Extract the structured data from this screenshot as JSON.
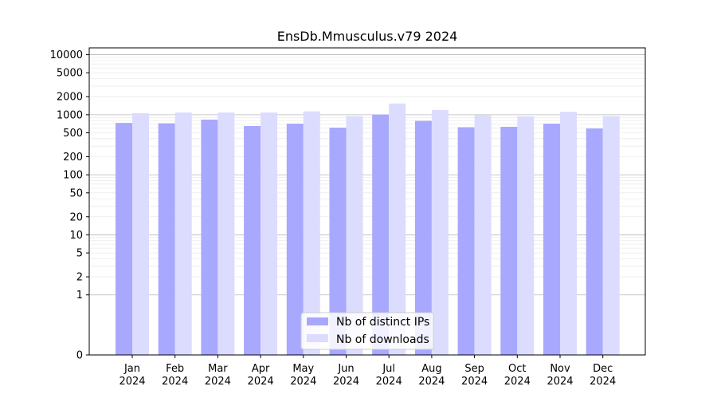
{
  "chart_data": {
    "type": "bar",
    "title": "EnsDb.Mmusculus.v79 2024",
    "xlabel": "",
    "ylabel": "",
    "yscale": "symlog",
    "ylim": [
      0,
      13000
    ],
    "categories": [
      [
        "Jan",
        "2024"
      ],
      [
        "Feb",
        "2024"
      ],
      [
        "Mar",
        "2024"
      ],
      [
        "Apr",
        "2024"
      ],
      [
        "May",
        "2024"
      ],
      [
        "Jun",
        "2024"
      ],
      [
        "Jul",
        "2024"
      ],
      [
        "Aug",
        "2024"
      ],
      [
        "Sep",
        "2024"
      ],
      [
        "Oct",
        "2024"
      ],
      [
        "Nov",
        "2024"
      ],
      [
        "Dec",
        "2024"
      ]
    ],
    "series": [
      {
        "name": "Nb of distinct IPs",
        "color": "#a8a8ff",
        "values": [
          730,
          720,
          830,
          650,
          710,
          610,
          1010,
          790,
          620,
          630,
          710,
          590
        ]
      },
      {
        "name": "Nb of downloads",
        "color": "#dcdcff",
        "values": [
          1060,
          1090,
          1090,
          1090,
          1140,
          950,
          1540,
          1200,
          980,
          940,
          1120,
          950
        ]
      }
    ],
    "yticks": [
      {
        "value": 0,
        "label": "0"
      },
      {
        "value": 1,
        "label": "1"
      },
      {
        "value": 2,
        "label": "2"
      },
      {
        "value": 5,
        "label": "5"
      },
      {
        "value": 10,
        "label": "10"
      },
      {
        "value": 20,
        "label": "20"
      },
      {
        "value": 50,
        "label": "50"
      },
      {
        "value": 100,
        "label": "100"
      },
      {
        "value": 200,
        "label": "200"
      },
      {
        "value": 500,
        "label": "500"
      },
      {
        "value": 1000,
        "label": "1000"
      },
      {
        "value": 2000,
        "label": "2000"
      },
      {
        "value": 5000,
        "label": "5000"
      },
      {
        "value": 10000,
        "label": "10000"
      }
    ],
    "grid": true,
    "legend_position": "lower-center"
  }
}
